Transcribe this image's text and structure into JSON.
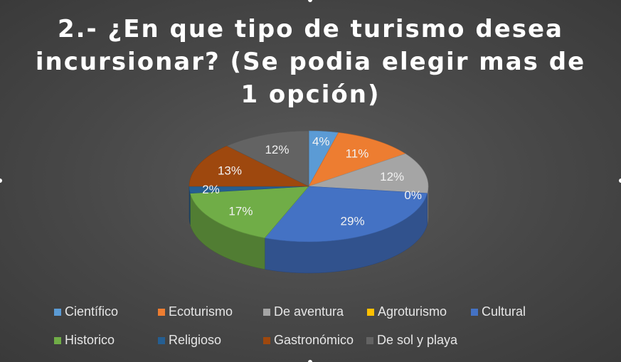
{
  "chart_data": {
    "type": "pie",
    "title": "2.- ¿En que tipo de turismo desea incursionar? (Se podia elegir mas de 1 opción)",
    "categories": [
      "Científico",
      "Ecoturismo",
      "De aventura",
      "Agroturismo",
      "Cultural",
      "Historico",
      "Religioso",
      "Gastronómico",
      "De sol y playa"
    ],
    "values": [
      4,
      11,
      12,
      0,
      29,
      17,
      2,
      13,
      12
    ],
    "labels": [
      "4%",
      "11%",
      "12%",
      "0%",
      "29%",
      "17%",
      "2%",
      "13%",
      "12%"
    ],
    "colors": [
      "#5b9bd5",
      "#ed7d31",
      "#a5a5a5",
      "#ffc000",
      "#4472c4",
      "#70ad47",
      "#255e91",
      "#9e480e",
      "#636363"
    ],
    "legend_position": "bottom",
    "style": "3d"
  }
}
